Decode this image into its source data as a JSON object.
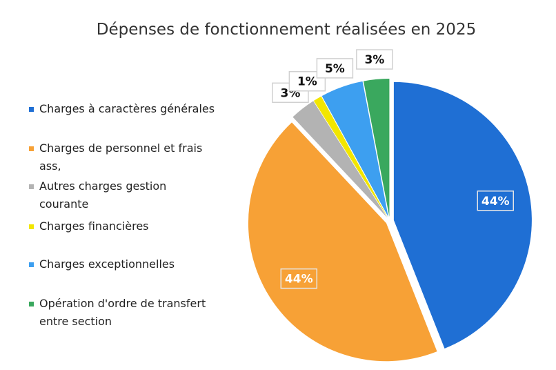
{
  "chart_data": {
    "type": "pie",
    "title": "Dépenses de fonctionnement réalisées en 2025",
    "categories": [
      "Charges à caractères générales",
      "Charges de personnel et frais ass,",
      "Autres charges gestion courante",
      "Charges financières",
      "Charges exceptionnelles",
      "Opération d'ordre de transfert entre section"
    ],
    "values": [
      44,
      44,
      3,
      1,
      5,
      3
    ],
    "value_labels": [
      "44%",
      "44%",
      "3%",
      "1%",
      "5%",
      "3%"
    ],
    "colors": [
      "#1f6fd4",
      "#f7a136",
      "#b3b3b3",
      "#f2e600",
      "#3d9ff0",
      "#3aa85e"
    ],
    "legend": "left"
  }
}
